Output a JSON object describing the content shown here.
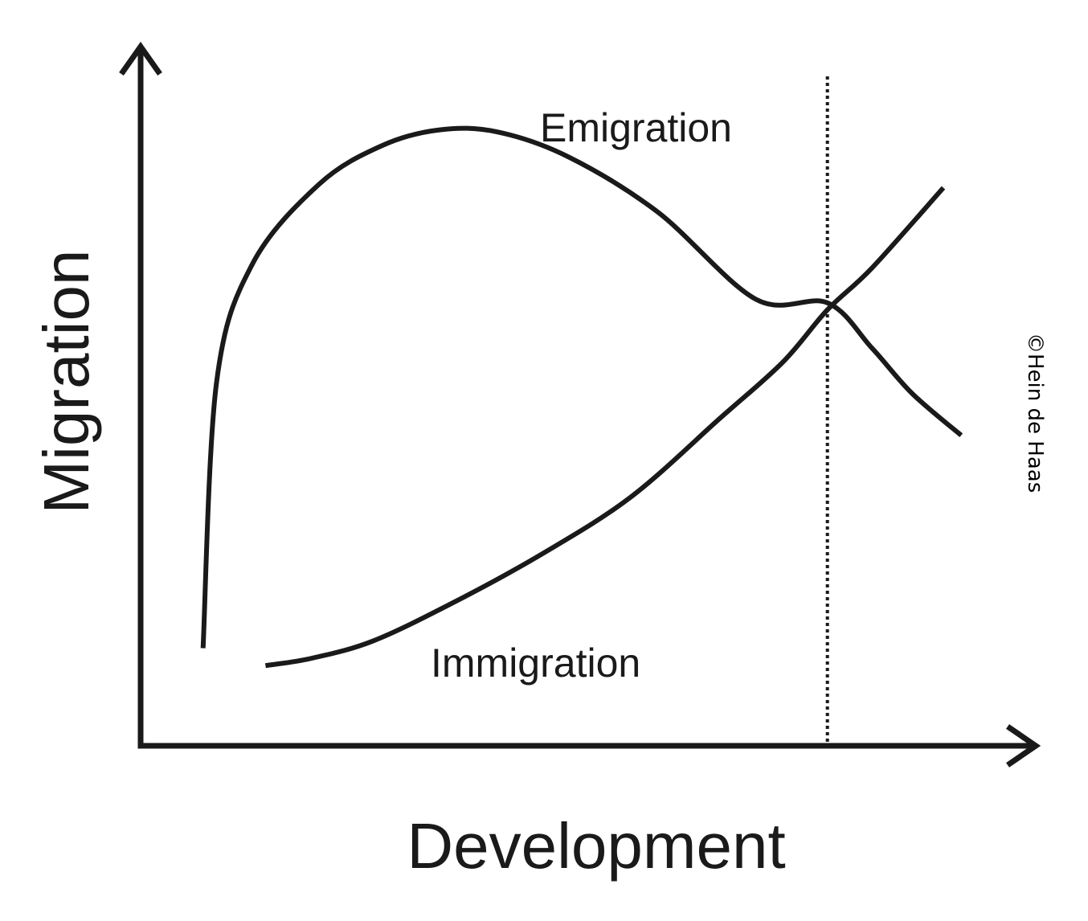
{
  "chart_data": {
    "type": "line",
    "xlabel": "Development",
    "ylabel": "Migration",
    "xlim": [
      0,
      100
    ],
    "ylim": [
      0,
      100
    ],
    "grid": false,
    "legend": "none",
    "reference_lines": [
      {
        "axis": "x",
        "value": 77,
        "style": "dotted"
      }
    ],
    "series": [
      {
        "name": "Emigration",
        "x": [
          7,
          8.5,
          12.5,
          20,
          27,
          33.5,
          40,
          48,
          58,
          69,
          77,
          82,
          86.5,
          92
        ],
        "y": [
          14,
          52,
          69,
          80.5,
          86,
          88.3,
          88,
          84.4,
          76.5,
          64,
          63.5,
          57,
          50.5,
          44.5
        ]
      },
      {
        "name": "Immigration",
        "x": [
          14,
          19,
          26,
          35,
          45,
          55,
          65,
          72,
          77,
          82,
          90
        ],
        "y": [
          11.5,
          12.5,
          15,
          20.5,
          27.5,
          35.7,
          47,
          55,
          62.5,
          68.5,
          80
        ]
      }
    ],
    "annotations": [
      {
        "text": "Emigration",
        "series": "Emigration"
      },
      {
        "text": "Immigration",
        "series": "Immigration"
      }
    ]
  },
  "credit": "©Hein de Haas"
}
